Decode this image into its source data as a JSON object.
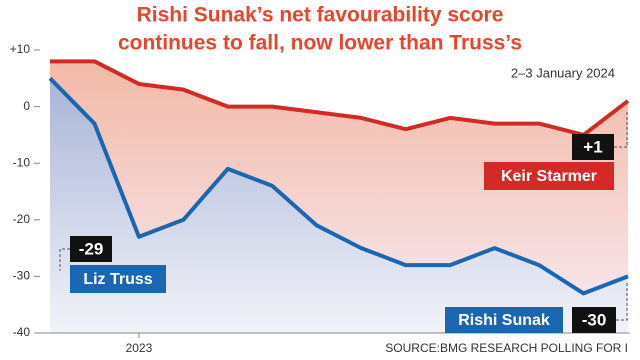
{
  "chart_data": {
    "type": "line",
    "title": [
      "Rishi Sunak’s net favourability score",
      "continues to fall, now lower than Truss’s"
    ],
    "subtitle": "2–3 January 2024",
    "source": "SOURCE:BMG RESEARCH POLLING FOR I",
    "categories": [
      null,
      null,
      "2023",
      null,
      null,
      null,
      null,
      null,
      null,
      null,
      null,
      null,
      null,
      null
    ],
    "ylim": [
      -40,
      10
    ],
    "yticks": [
      {
        "value": 10,
        "label": "+10"
      },
      0,
      -10,
      -20,
      -30,
      -40
    ],
    "grid": false,
    "series": [
      {
        "name": "Keir Starmer",
        "color": "#d42a27",
        "values": [
          8,
          8,
          4,
          3,
          0,
          0,
          -1,
          -2,
          -4,
          -2,
          -3,
          -3,
          -5,
          1
        ],
        "end_label": "+1"
      },
      {
        "name": "Rishi Sunak",
        "color": "#1a66b0",
        "values": [
          5,
          -3,
          -23,
          -20,
          -11,
          -14,
          -21,
          -25,
          -28,
          -28,
          -25,
          -28,
          -33,
          -30
        ],
        "end_label": "-30"
      }
    ],
    "annotation": {
      "name": "Liz Truss",
      "value": -29,
      "label": "-29",
      "color": "#1a66b0"
    }
  }
}
